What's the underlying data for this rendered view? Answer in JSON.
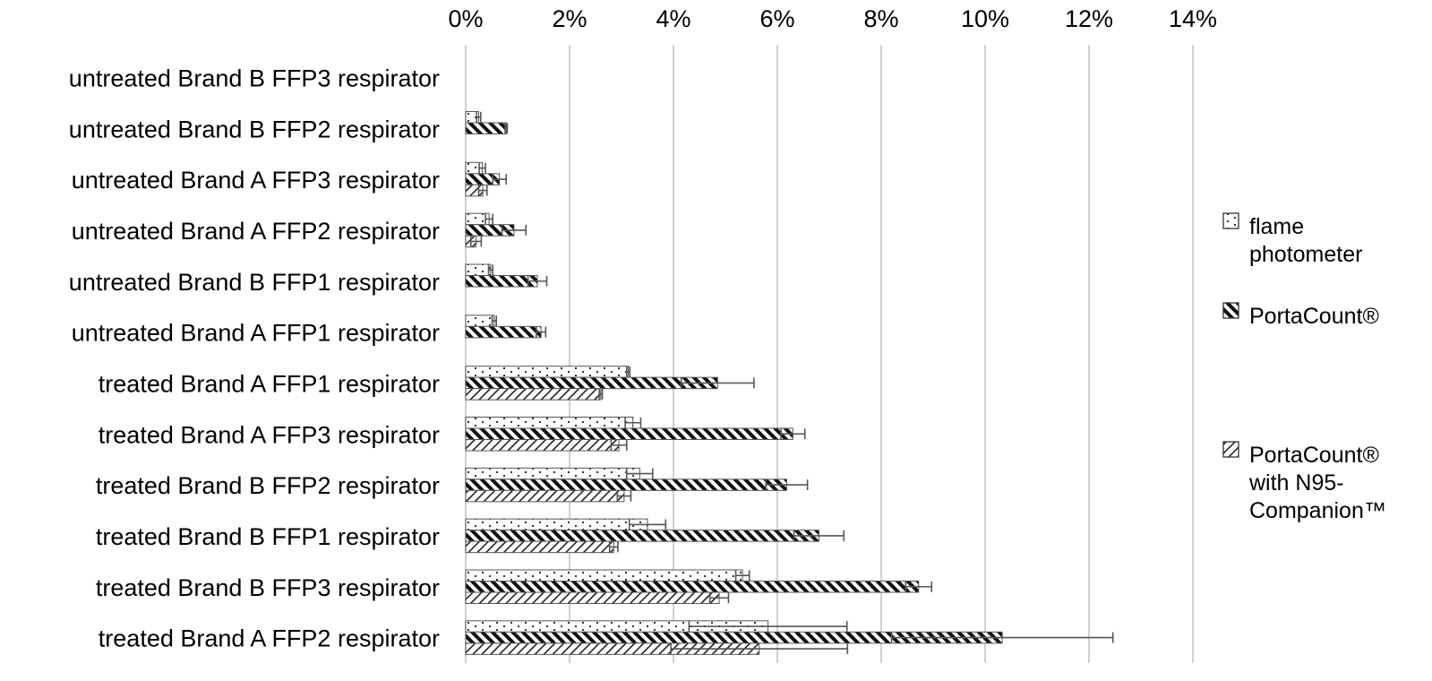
{
  "chart_data": {
    "type": "bar",
    "orientation": "horizontal",
    "title": "",
    "xlabel": "",
    "ylabel": "",
    "xlim": [
      0,
      0.14
    ],
    "x_ticks": [
      0,
      0.02,
      0.04,
      0.06,
      0.08,
      0.1,
      0.12,
      0.14
    ],
    "x_tick_labels": [
      "0%",
      "2%",
      "4%",
      "6%",
      "8%",
      "10%",
      "12%",
      "14%"
    ],
    "x_axis_position": "top",
    "grid": true,
    "legend_position": "right",
    "categories": [
      "untreated Brand B FFP3 respirator",
      "untreated Brand B FFP2 respirator",
      "untreated Brand A FFP3 respirator",
      "untreated Brand A FFP2 respirator",
      "untreated Brand B FFP1 respirator",
      "untreated Brand A FFP1 respirator",
      "treated Brand A FFP1 respirator",
      "treated Brand A FFP3 respirator",
      "treated Brand B FFP2 respirator",
      "treated Brand B FFP1 respirator",
      "treated Brand B FFP3 respirator",
      "treated Brand A FFP2 respirator"
    ],
    "series": [
      {
        "name": "flame photometer",
        "legend_lines": [
          "flame",
          "photometer"
        ],
        "pattern": "dots",
        "values": [
          0.0,
          0.0025,
          0.0032,
          0.0045,
          0.0048,
          0.0055,
          0.0313,
          0.0322,
          0.0335,
          0.035,
          0.0533,
          0.0582
        ],
        "errors": [
          0.0,
          0.0004,
          0.0006,
          0.0007,
          0.0004,
          0.0004,
          0.0003,
          0.0015,
          0.0025,
          0.0035,
          0.0013,
          0.0152
        ]
      },
      {
        "name": "PortaCount®",
        "legend_lines": [
          "PortaCount®"
        ],
        "pattern": "diagonal-dense",
        "values": [
          0.0,
          0.0078,
          0.0065,
          0.0093,
          0.0138,
          0.0145,
          0.0485,
          0.063,
          0.0618,
          0.068,
          0.0872,
          0.1033
        ],
        "errors": [
          0.0,
          0.0002,
          0.0013,
          0.0023,
          0.0018,
          0.0009,
          0.007,
          0.0023,
          0.004,
          0.0048,
          0.0025,
          0.0213
        ]
      },
      {
        "name": "PortaCount® with N95-Companion™",
        "legend_lines": [
          "PortaCount®",
          "with N95-",
          "Companion™"
        ],
        "pattern": "diagonal",
        "values": [
          0.0,
          0.0,
          0.0033,
          0.002,
          0.0,
          0.0,
          0.026,
          0.0295,
          0.0305,
          0.0285,
          0.0488,
          0.0565
        ],
        "errors": [
          0.0,
          0.0,
          0.0008,
          0.001,
          0.0,
          0.0,
          0.0003,
          0.0015,
          0.0013,
          0.0008,
          0.0018,
          0.017
        ]
      }
    ]
  }
}
